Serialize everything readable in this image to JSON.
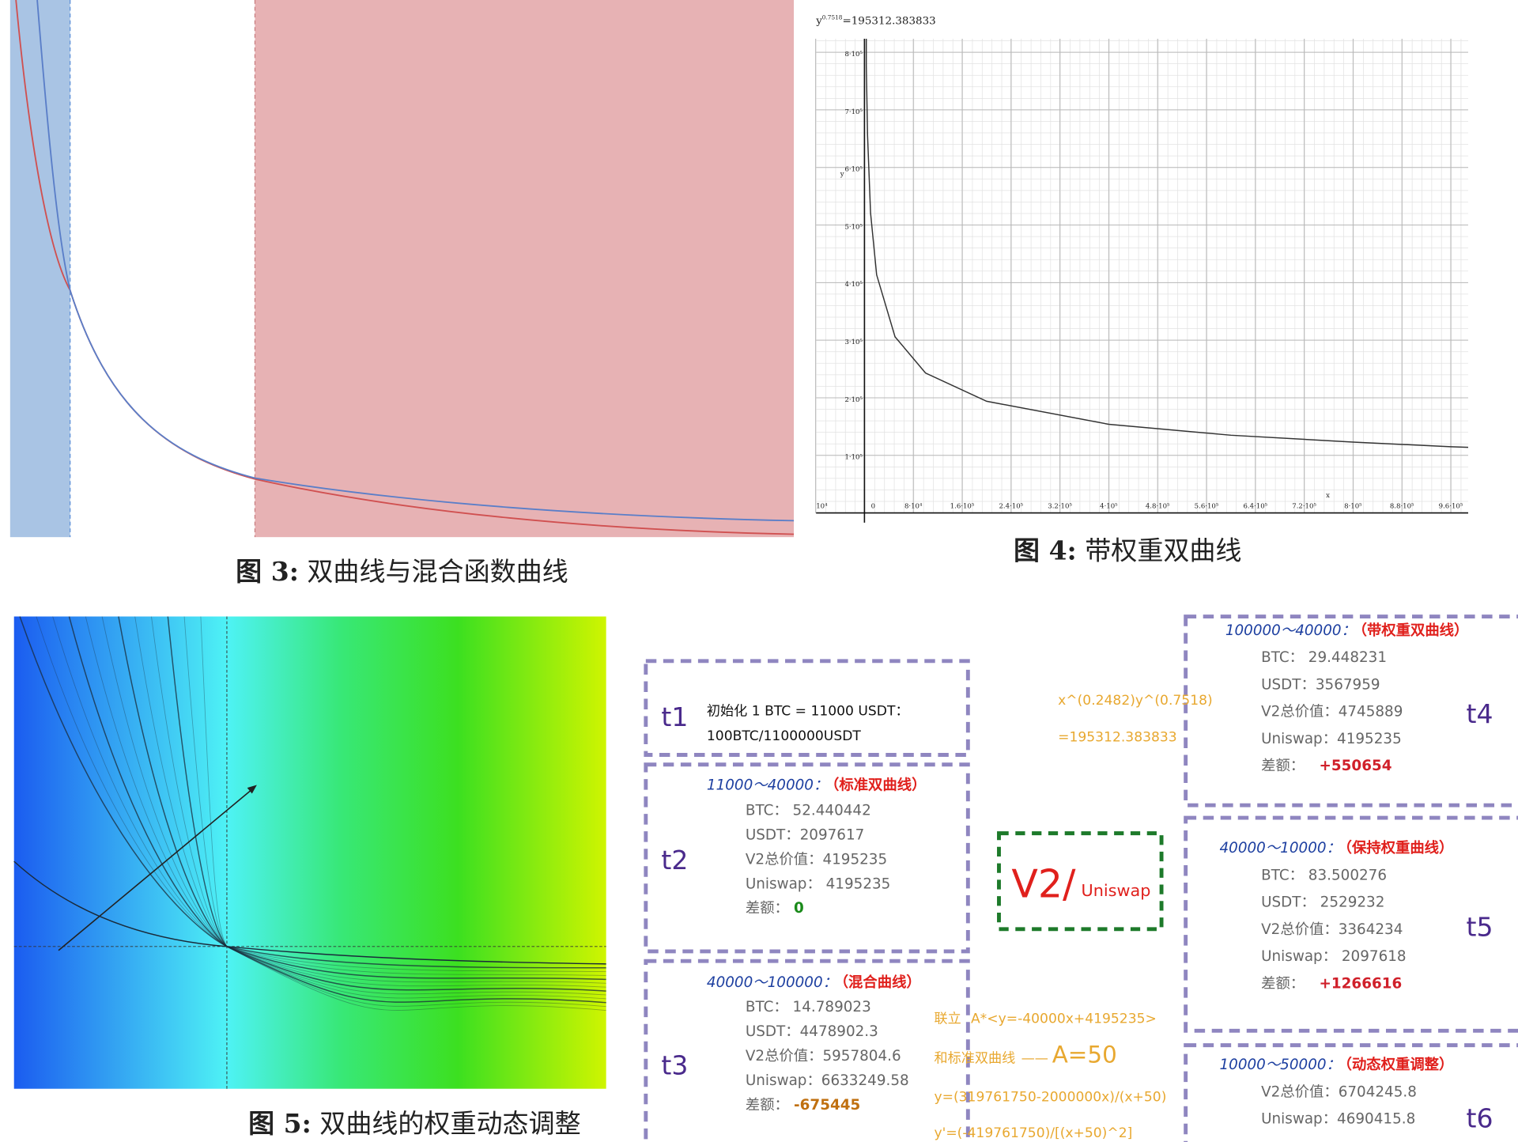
{
  "figure3": {
    "caption_label": "图 3:",
    "caption": "双曲线与混合函数曲线"
  },
  "figure4": {
    "equation_var": "y",
    "equation_exp": "0.7518",
    "equation_rhs": "=195312.383833",
    "y_axis_label": "y",
    "x_axis_label": "x",
    "corner_label": "10⁴",
    "ytick_labels": [
      "8·10⁵",
      "7·10⁵",
      "6·10⁵",
      "5·10⁵",
      "4·10⁵",
      "3·10⁵",
      "2·10⁵",
      "1·10⁵"
    ],
    "xtick_labels": [
      "0",
      "8·10⁴",
      "1.6·10⁵",
      "2.4·10⁵",
      "3.2·10⁵",
      "4·10⁵",
      "4.8·10⁵",
      "5.6·10⁵",
      "6.4·10⁵",
      "7.2·10⁵",
      "8·10⁵",
      "8.8·10⁵",
      "9.6·10⁵"
    ],
    "caption_label": "图 4:",
    "caption": "带权重双曲线"
  },
  "figure5": {
    "caption_label": "图 5:",
    "caption": "双曲线的权重动态调整"
  },
  "diagram": {
    "t1": {
      "label": "t1",
      "lines": [
        "初始化 1 BTC = 11000 USDT：",
        "100BTC/1100000USDT"
      ]
    },
    "t2": {
      "label": "t2",
      "range": "11000～40000：",
      "tag": "（标准双曲线）",
      "lines": [
        "BTC：  52.440442",
        "USDT：2097617",
        "V2总价值：4195235",
        "Uniswap：  4195235"
      ],
      "diff_label": "差额：",
      "diff": "0"
    },
    "t3": {
      "label": "t3",
      "range": "40000～100000：",
      "tag": "（混合曲线）",
      "lines": [
        "BTC： 14.789023",
        "USDT：4478902.3",
        "V2总价值：5957804.6",
        "Uniswap：6633249.58"
      ],
      "diff_label": "差额：",
      "diff": "-675445"
    },
    "t4": {
      "label": "t4",
      "range": "100000～40000：",
      "tag": "（带权重双曲线）",
      "lines": [
        "BTC：  29.448231",
        "USDT：3567959",
        "V2总价值：4745889",
        "Uniswap：4195235"
      ],
      "diff_label": "差额：",
      "diff": "+550654"
    },
    "t5": {
      "label": "t5",
      "range": "40000～10000：",
      "tag": "（保持权重曲线）",
      "lines": [
        "BTC： 83.500276",
        "USDT： 2529232",
        "V2总价值：3364234",
        "Uniswap： 2097618"
      ],
      "diff_label": "差额：",
      "diff": "+1266616"
    },
    "t6": {
      "label": "t6",
      "range": "10000～50000：",
      "tag": "（动态权重调整）",
      "lines": [
        "V2总价值：6704245.8",
        "Uniswap：4690415.8"
      ]
    },
    "center": {
      "v2": "V2/",
      "uniswap": "Uniswap"
    },
    "formula": [
      "x^(0.2482)y^(0.7518)",
      "=195312.383833"
    ],
    "solve": {
      "word": "联立",
      "line": "A*<y=-40000x+4195235>",
      "with": "和标准双曲线",
      "dash": "——",
      "result": "A=50",
      "eq1": "y=(319761750-2000000x)/(x+50)",
      "eq2": "y'=(-419761750)/[(x+50)^2]"
    }
  }
}
